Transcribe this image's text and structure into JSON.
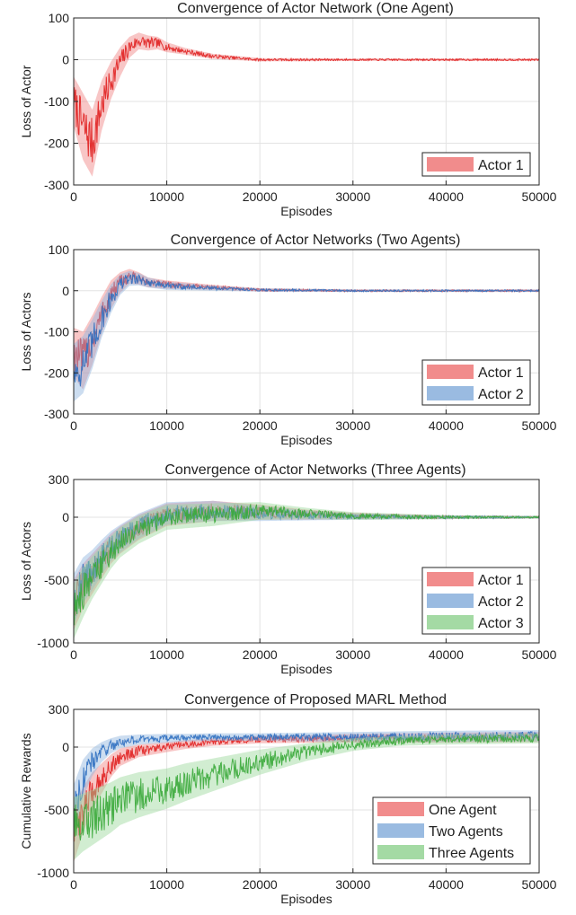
{
  "chart_data": [
    {
      "type": "line",
      "title": "Convergence of Actor Network (One Agent)",
      "xlabel": "Episodes",
      "ylabel": "Loss of Actor",
      "xlim": [
        0,
        50000
      ],
      "ylim": [
        -300,
        100
      ],
      "xticks": [
        "0",
        "10000",
        "20000",
        "30000",
        "40000",
        "50000"
      ],
      "yticks": [
        "100",
        "0",
        "-100",
        "-200",
        "-300"
      ],
      "grid": true,
      "legend_position": "bottom-right",
      "series": [
        {
          "name": "Actor 1",
          "line_color": "#e02020",
          "fill_color": "#f08080",
          "x": [
            0,
            1000,
            2000,
            3000,
            4000,
            5000,
            6000,
            7000,
            8000,
            9000,
            10000,
            12000,
            15000,
            20000,
            30000,
            40000,
            50000
          ],
          "y": [
            -100,
            -160,
            -200,
            -110,
            -50,
            -5,
            30,
            45,
            40,
            40,
            30,
            20,
            8,
            0,
            0,
            0,
            0
          ],
          "band": [
            60,
            80,
            80,
            60,
            45,
            35,
            25,
            20,
            18,
            15,
            12,
            8,
            6,
            4,
            3,
            3,
            3
          ]
        }
      ]
    },
    {
      "type": "line",
      "title": "Convergence of Actor Networks (Two Agents)",
      "xlabel": "Episodes",
      "ylabel": "Loss of Actors",
      "xlim": [
        0,
        50000
      ],
      "ylim": [
        -300,
        100
      ],
      "xticks": [
        "0",
        "10000",
        "20000",
        "30000",
        "40000",
        "50000"
      ],
      "yticks": [
        "100",
        "0",
        "-100",
        "-200",
        "-300"
      ],
      "grid": true,
      "legend_position": "bottom-right",
      "series": [
        {
          "name": "Actor 1",
          "line_color": "#e02020",
          "fill_color": "#f08080",
          "x": [
            0,
            1000,
            2000,
            3000,
            4000,
            5000,
            6000,
            7000,
            8000,
            10000,
            15000,
            20000,
            30000,
            40000,
            50000
          ],
          "y": [
            -150,
            -170,
            -120,
            -60,
            -10,
            20,
            35,
            30,
            20,
            15,
            8,
            2,
            0,
            0,
            0
          ],
          "band": [
            60,
            70,
            60,
            45,
            35,
            25,
            18,
            15,
            12,
            10,
            6,
            4,
            3,
            3,
            3
          ]
        },
        {
          "name": "Actor 2",
          "line_color": "#2f6fc0",
          "fill_color": "#8fb4de",
          "x": [
            0,
            1000,
            2000,
            3000,
            4000,
            5000,
            6000,
            7000,
            8000,
            10000,
            15000,
            20000,
            30000,
            40000,
            50000
          ],
          "y": [
            -200,
            -180,
            -130,
            -70,
            -20,
            15,
            30,
            28,
            20,
            12,
            6,
            2,
            0,
            0,
            0
          ],
          "band": [
            70,
            70,
            60,
            45,
            35,
            25,
            18,
            15,
            12,
            10,
            6,
            4,
            3,
            3,
            3
          ]
        }
      ]
    },
    {
      "type": "line",
      "title": "Convergence of Actor Networks (Three Agents)",
      "xlabel": "Episodes",
      "ylabel": "Loss of Actors",
      "xlim": [
        0,
        50000
      ],
      "ylim": [
        -1000,
        300
      ],
      "xticks": [
        "0",
        "10000",
        "20000",
        "30000",
        "40000",
        "50000"
      ],
      "yticks": [
        "300",
        "0",
        "-500",
        "-1000"
      ],
      "grid": true,
      "legend_position": "bottom-right",
      "series": [
        {
          "name": "Actor 1",
          "line_color": "#e02020",
          "fill_color": "#f08080",
          "x": [
            0,
            1000,
            2000,
            3000,
            4000,
            5000,
            7000,
            10000,
            15000,
            20000,
            25000,
            30000,
            40000,
            50000
          ],
          "y": [
            -700,
            -550,
            -450,
            -350,
            -250,
            -180,
            -80,
            20,
            50,
            40,
            20,
            10,
            0,
            0
          ],
          "band": [
            200,
            180,
            160,
            140,
            120,
            110,
            100,
            90,
            80,
            60,
            40,
            25,
            15,
            10
          ]
        },
        {
          "name": "Actor 2",
          "line_color": "#2f6fc0",
          "fill_color": "#8fb4de",
          "x": [
            0,
            1000,
            2000,
            3000,
            4000,
            5000,
            7000,
            10000,
            15000,
            20000,
            25000,
            30000,
            40000,
            50000
          ],
          "y": [
            -650,
            -500,
            -420,
            -320,
            -230,
            -170,
            -70,
            30,
            50,
            30,
            15,
            5,
            0,
            0
          ],
          "band": [
            200,
            180,
            160,
            140,
            120,
            110,
            100,
            90,
            80,
            60,
            40,
            25,
            15,
            10
          ]
        },
        {
          "name": "Actor 3",
          "line_color": "#3aa83a",
          "fill_color": "#9ad69a",
          "x": [
            0,
            1000,
            2000,
            3000,
            4000,
            5000,
            7000,
            10000,
            15000,
            20000,
            25000,
            30000,
            40000,
            50000
          ],
          "y": [
            -750,
            -600,
            -480,
            -380,
            -280,
            -200,
            -100,
            0,
            20,
            50,
            30,
            10,
            0,
            0
          ],
          "band": [
            220,
            200,
            170,
            150,
            130,
            120,
            110,
            100,
            90,
            70,
            45,
            30,
            15,
            10
          ]
        }
      ]
    },
    {
      "type": "line",
      "title": "Convergence of Proposed MARL Method",
      "xlabel": "Episodes",
      "ylabel": "Cumulative Rewards",
      "xlim": [
        0,
        50000
      ],
      "ylim": [
        -1000,
        300
      ],
      "xticks": [
        "0",
        "10000",
        "20000",
        "30000",
        "40000",
        "50000"
      ],
      "yticks": [
        "300",
        "0",
        "-500",
        "-1000"
      ],
      "grid": true,
      "legend_position": "bottom-right",
      "series": [
        {
          "name": "One Agent",
          "line_color": "#e02020",
          "fill_color": "#f08080",
          "x": [
            0,
            1000,
            2000,
            3000,
            4000,
            5000,
            7000,
            10000,
            12000,
            15000,
            20000,
            25000,
            30000,
            40000,
            50000
          ],
          "y": [
            -700,
            -500,
            -350,
            -250,
            -150,
            -80,
            -30,
            0,
            20,
            40,
            60,
            65,
            70,
            75,
            80
          ],
          "band": [
            220,
            180,
            150,
            120,
            90,
            70,
            50,
            40,
            35,
            30,
            30,
            30,
            35,
            40,
            40
          ]
        },
        {
          "name": "Two Agents",
          "line_color": "#2f6fc0",
          "fill_color": "#8fb4de",
          "x": [
            0,
            1000,
            2000,
            3000,
            4000,
            5000,
            7000,
            10000,
            12000,
            15000,
            20000,
            25000,
            30000,
            40000,
            50000
          ],
          "y": [
            -500,
            -250,
            -120,
            -40,
            10,
            40,
            60,
            70,
            75,
            80,
            80,
            80,
            80,
            85,
            90
          ],
          "band": [
            200,
            150,
            110,
            80,
            60,
            50,
            40,
            35,
            30,
            30,
            30,
            35,
            40,
            45,
            45
          ]
        },
        {
          "name": "Three Agents",
          "line_color": "#3aa83a",
          "fill_color": "#9ad69a",
          "x": [
            0,
            1000,
            2000,
            3000,
            4000,
            5000,
            7000,
            10000,
            12000,
            15000,
            20000,
            25000,
            30000,
            35000,
            40000,
            50000
          ],
          "y": [
            -650,
            -600,
            -560,
            -520,
            -480,
            -430,
            -380,
            -330,
            -280,
            -220,
            -120,
            -40,
            20,
            50,
            60,
            70
          ],
          "band": [
            250,
            230,
            220,
            210,
            200,
            190,
            180,
            160,
            150,
            130,
            100,
            70,
            50,
            40,
            40,
            40
          ]
        }
      ]
    }
  ]
}
